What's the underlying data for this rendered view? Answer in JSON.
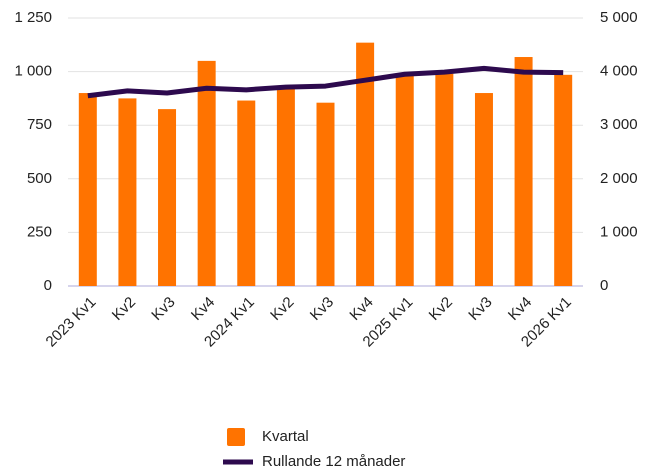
{
  "chart_data": {
    "type": "bar",
    "categories": [
      "2023 Kv1",
      "Kv2",
      "Kv3",
      "Kv4",
      "2024 Kv1",
      "Kv2",
      "Kv3",
      "Kv4",
      "2025 Kv1",
      "Kv2",
      "Kv3",
      "Kv4",
      "2026 Kv1"
    ],
    "series": [
      {
        "name": "Kvartal",
        "type": "bar",
        "color": "#ff7300",
        "values": [
          900,
          875,
          825,
          1050,
          865,
          925,
          855,
          1135,
          990,
          990,
          900,
          1068,
          985
        ]
      },
      {
        "name": "Rullande 12 månader",
        "type": "line",
        "axis": "y2",
        "color": "#2d0a4e",
        "values": [
          3550,
          3640,
          3600,
          3690,
          3660,
          3710,
          3730,
          3840,
          3950,
          3990,
          4060,
          3990,
          3980
        ]
      }
    ],
    "ylim": [
      0,
      1250
    ],
    "yticks": [
      0,
      250,
      500,
      750,
      {
        "value": 1000,
        "label": "1 000"
      },
      {
        "value": 1250,
        "label": "1 250"
      }
    ],
    "y2lim": [
      0,
      5000
    ],
    "y2ticks": [
      0,
      {
        "value": 1000,
        "label": "1 000"
      },
      {
        "value": 2000,
        "label": "2 000"
      },
      {
        "value": 3000,
        "label": "3 000"
      },
      {
        "value": 4000,
        "label": "4 000"
      },
      {
        "value": 5000,
        "label": "5 000"
      }
    ],
    "grid": true,
    "legend": "bottom"
  }
}
